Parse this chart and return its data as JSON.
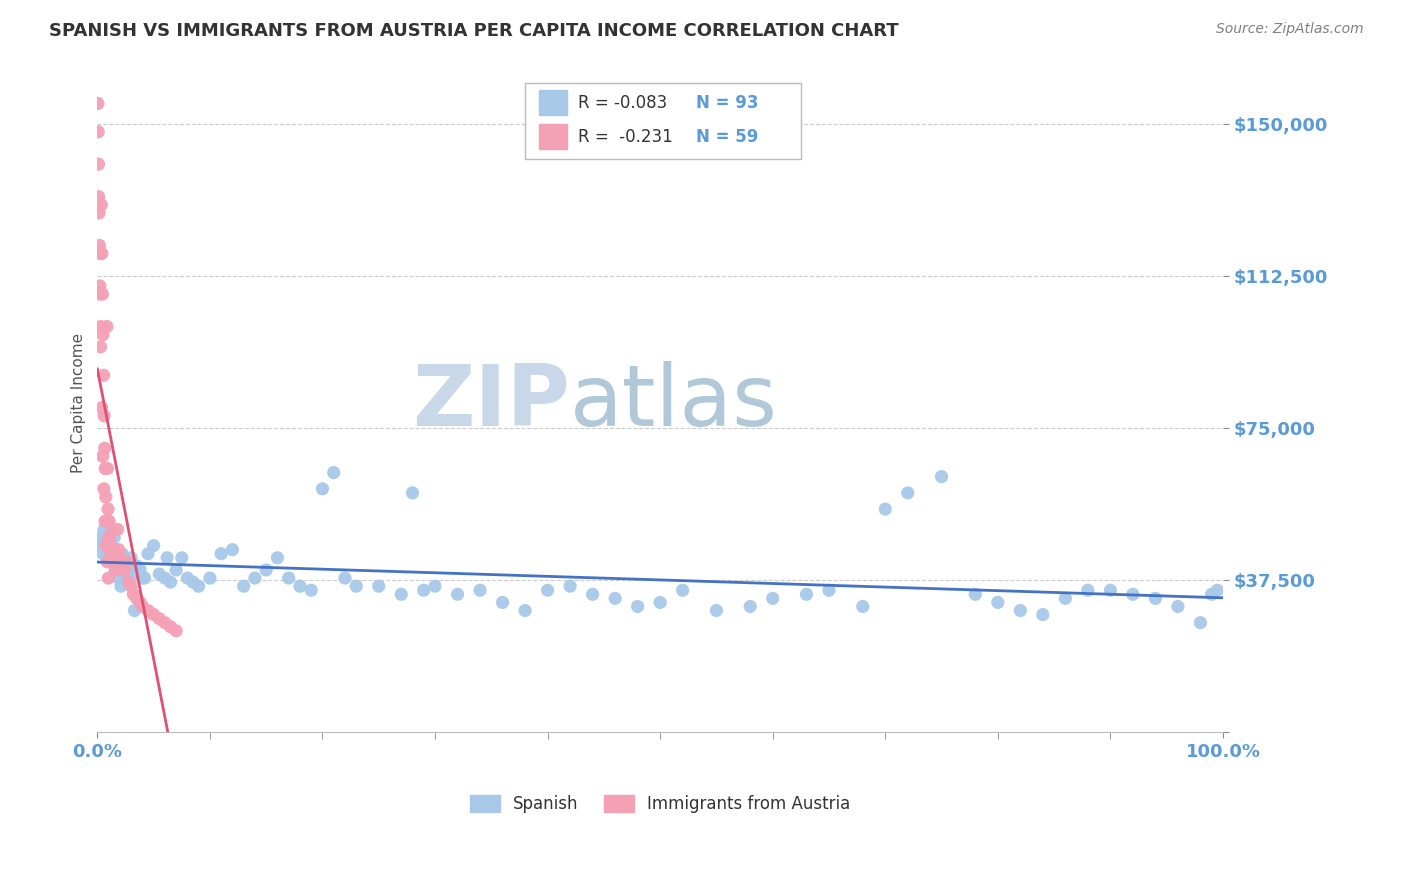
{
  "title": "SPANISH VS IMMIGRANTS FROM AUSTRIA PER CAPITA INCOME CORRELATION CHART",
  "source": "Source: ZipAtlas.com",
  "ylabel": "Per Capita Income",
  "xlim": [
    0.0,
    100.0
  ],
  "ylim": [
    0,
    162500
  ],
  "yticks": [
    0,
    37500,
    75000,
    112500,
    150000
  ],
  "ytick_labels": [
    "",
    "$37,500",
    "$75,000",
    "$112,500",
    "$150,000"
  ],
  "bg_color": "#ffffff",
  "grid_color": "#cccccc",
  "watermark_zip": "ZIP",
  "watermark_atlas": "atlas",
  "series": [
    {
      "name": "Spanish",
      "color": "#a8c8e8",
      "line_color": "#4472c4",
      "R": -0.083,
      "N": 93,
      "x": [
        0.2,
        0.4,
        0.5,
        0.6,
        0.7,
        0.8,
        0.9,
        1.0,
        1.1,
        1.2,
        1.3,
        1.4,
        1.5,
        1.6,
        1.7,
        1.8,
        1.9,
        2.0,
        2.2,
        2.4,
        2.6,
        2.8,
        3.0,
        3.2,
        3.5,
        3.8,
        4.0,
        4.5,
        5.0,
        5.5,
        6.0,
        6.5,
        7.0,
        7.5,
        8.0,
        9.0,
        10.0,
        11.0,
        12.0,
        13.0,
        14.0,
        15.0,
        16.0,
        17.0,
        18.0,
        19.0,
        20.0,
        21.0,
        22.0,
        23.0,
        25.0,
        27.0,
        28.0,
        29.0,
        30.0,
        32.0,
        34.0,
        36.0,
        38.0,
        40.0,
        42.0,
        44.0,
        46.0,
        48.0,
        50.0,
        52.0,
        55.0,
        58.0,
        60.0,
        63.0,
        65.0,
        68.0,
        70.0,
        72.0,
        75.0,
        78.0,
        80.0,
        82.0,
        84.0,
        86.0,
        88.0,
        90.0,
        92.0,
        94.0,
        96.0,
        98.0,
        99.0,
        99.5,
        2.1,
        3.3,
        4.2,
        6.2,
        8.5
      ],
      "y": [
        48000,
        46000,
        44000,
        50000,
        48000,
        45000,
        44000,
        43000,
        50000,
        46000,
        42000,
        44000,
        48000,
        40000,
        43000,
        42000,
        38000,
        40000,
        44000,
        42000,
        38000,
        40000,
        43000,
        39000,
        41000,
        40000,
        38000,
        44000,
        46000,
        39000,
        38000,
        37000,
        40000,
        43000,
        38000,
        36000,
        38000,
        44000,
        45000,
        36000,
        38000,
        40000,
        43000,
        38000,
        36000,
        35000,
        60000,
        64000,
        38000,
        36000,
        36000,
        34000,
        59000,
        35000,
        36000,
        34000,
        35000,
        32000,
        30000,
        35000,
        36000,
        34000,
        33000,
        31000,
        32000,
        35000,
        30000,
        31000,
        33000,
        34000,
        35000,
        31000,
        55000,
        59000,
        63000,
        34000,
        32000,
        30000,
        29000,
        33000,
        35000,
        35000,
        34000,
        33000,
        31000,
        27000,
        34000,
        35000,
        36000,
        30000,
        38000,
        43000,
        37000
      ]
    },
    {
      "name": "Immigrants from Austria",
      "color": "#f4a0b5",
      "line_color": "#e05070",
      "R": -0.231,
      "N": 59,
      "x": [
        0.05,
        0.08,
        0.1,
        0.12,
        0.15,
        0.18,
        0.2,
        0.25,
        0.3,
        0.35,
        0.4,
        0.45,
        0.5,
        0.55,
        0.6,
        0.65,
        0.7,
        0.75,
        0.8,
        0.85,
        0.9,
        0.95,
        1.0,
        1.05,
        1.1,
        1.2,
        1.3,
        1.4,
        1.5,
        1.6,
        1.7,
        1.8,
        1.9,
        2.0,
        2.2,
        2.4,
        2.6,
        2.8,
        3.0,
        3.2,
        3.5,
        3.8,
        4.0,
        4.5,
        5.0,
        5.5,
        6.0,
        6.5,
        7.0,
        0.22,
        0.28,
        0.38,
        0.48,
        0.58,
        0.68,
        0.78,
        0.88,
        0.98,
        1.15
      ],
      "y": [
        155000,
        148000,
        140000,
        132000,
        128000,
        120000,
        118000,
        108000,
        100000,
        130000,
        118000,
        108000,
        98000,
        88000,
        78000,
        70000,
        65000,
        58000,
        52000,
        100000,
        65000,
        55000,
        48000,
        52000,
        48000,
        44000,
        45000,
        50000,
        42000,
        40000,
        44000,
        50000,
        45000,
        43000,
        40000,
        40000,
        42000,
        37000,
        36000,
        34000,
        33000,
        32000,
        31000,
        30000,
        29000,
        28000,
        27000,
        26000,
        25000,
        110000,
        95000,
        80000,
        68000,
        60000,
        52000,
        46000,
        42000,
        38000,
        46000
      ]
    }
  ],
  "legend": {
    "R1": "-0.083",
    "N1": "93",
    "R2": "-0.231",
    "N2": "59"
  },
  "title_color": "#333333",
  "tick_color": "#5b9bd5",
  "source_color": "#808080",
  "watermark_color_zip": "#c8d8e8",
  "watermark_color_atlas": "#b0c8d8"
}
